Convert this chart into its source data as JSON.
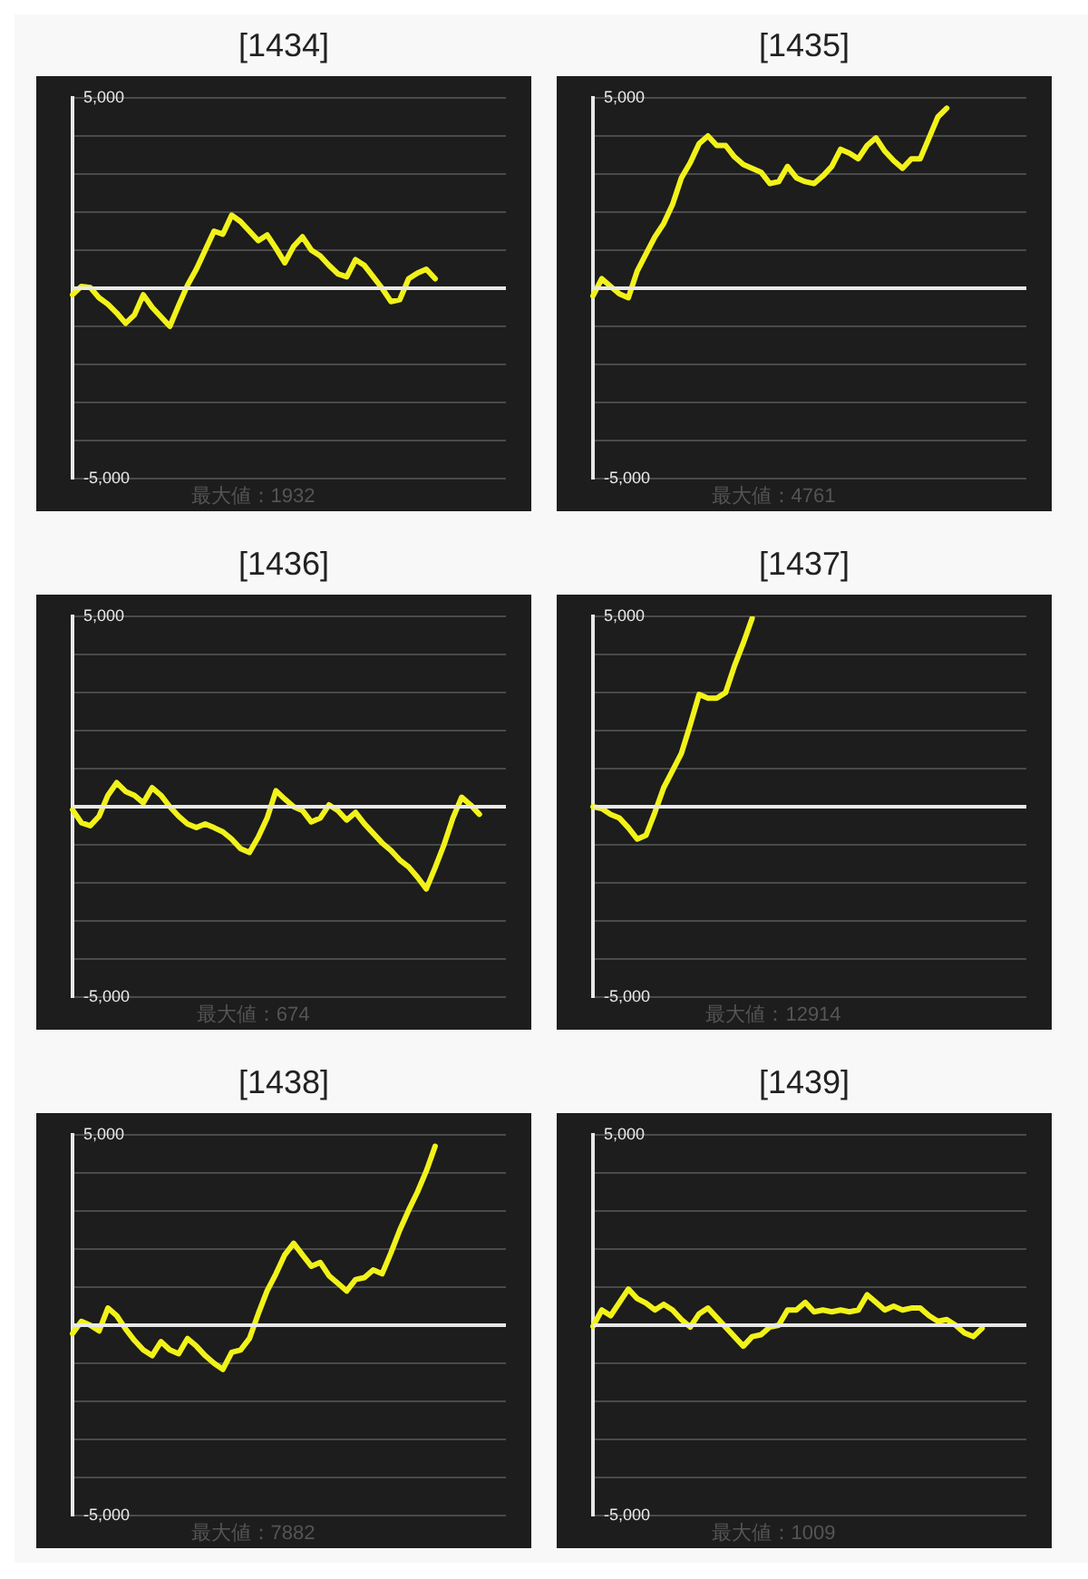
{
  "chart_data": [
    {
      "type": "line",
      "title": "[1434]",
      "categories": [
        null,
        null,
        null,
        null,
        null,
        null,
        null,
        null,
        null,
        null,
        null,
        null,
        null,
        null,
        null,
        null,
        null,
        null,
        null,
        null,
        null,
        null,
        null,
        null,
        null,
        null,
        null,
        null,
        null,
        null,
        null,
        null,
        null,
        null,
        null,
        null,
        null,
        null,
        null,
        null,
        null,
        null,
        null,
        null,
        null,
        null,
        null,
        null,
        null,
        null
      ],
      "series": [
        {
          "color": "#f2f21a",
          "values": [
            -170,
            50,
            20,
            -250,
            -420,
            -650,
            -920,
            -700,
            -170,
            -500,
            -750,
            -1000,
            -450,
            80,
            500,
            1000,
            1500,
            1420,
            1920,
            1750,
            1500,
            1250,
            1400,
            1050,
            670,
            1100,
            1350,
            1000,
            850,
            600,
            380,
            300,
            750,
            600,
            300,
            0,
            -350,
            -300,
            250,
            400,
            500,
            250,
            null,
            null,
            null,
            null,
            null,
            null,
            null,
            null
          ]
        }
      ],
      "ylim": [
        -5000,
        5000
      ],
      "yticks": [
        {
          "value": -5000,
          "label": "-5,000"
        },
        {
          "value": -4000,
          "label": null
        },
        {
          "value": -3000,
          "label": null
        },
        {
          "value": -2000,
          "label": null
        },
        {
          "value": -1000,
          "label": null
        },
        {
          "value": 0,
          "label": null
        },
        {
          "value": 1000,
          "label": null
        },
        {
          "value": 2000,
          "label": null
        },
        {
          "value": 3000,
          "label": null
        },
        {
          "value": 4000,
          "label": null
        },
        {
          "value": 5000,
          "label": "5,000"
        }
      ],
      "grid": "y",
      "tick_labels": "y",
      "marker": "none",
      "ref_lines": [
        {
          "axis": "y",
          "value": 0,
          "color": "#e8e8e8"
        }
      ],
      "annotations": [
        "最大値：1932"
      ]
    },
    {
      "type": "line",
      "title": "[1435]",
      "categories": [
        null,
        null,
        null,
        null,
        null,
        null,
        null,
        null,
        null,
        null,
        null,
        null,
        null,
        null,
        null,
        null,
        null,
        null,
        null,
        null,
        null,
        null,
        null,
        null,
        null,
        null,
        null,
        null,
        null,
        null,
        null,
        null,
        null,
        null,
        null,
        null,
        null,
        null,
        null,
        null,
        null,
        null,
        null,
        null,
        null,
        null,
        null,
        null,
        null,
        null
      ],
      "series": [
        {
          "color": "#f2f21a",
          "values": [
            -200,
            250,
            50,
            -150,
            -250,
            450,
            900,
            1350,
            1700,
            2200,
            2900,
            3300,
            3800,
            4000,
            3750,
            3750,
            3450,
            3250,
            3150,
            3050,
            2750,
            2800,
            3200,
            2900,
            2800,
            2750,
            2950,
            3200,
            3650,
            3550,
            3400,
            3750,
            3950,
            3600,
            3350,
            3150,
            3400,
            3400,
            3950,
            4500,
            4730,
            null,
            null,
            null,
            null,
            null,
            null,
            null,
            null,
            null
          ]
        }
      ],
      "ylim": [
        -5000,
        5000
      ],
      "yticks": [
        {
          "value": -5000,
          "label": "-5,000"
        },
        {
          "value": -4000,
          "label": null
        },
        {
          "value": -3000,
          "label": null
        },
        {
          "value": -2000,
          "label": null
        },
        {
          "value": -1000,
          "label": null
        },
        {
          "value": 0,
          "label": null
        },
        {
          "value": 1000,
          "label": null
        },
        {
          "value": 2000,
          "label": null
        },
        {
          "value": 3000,
          "label": null
        },
        {
          "value": 4000,
          "label": null
        },
        {
          "value": 5000,
          "label": "5,000"
        }
      ],
      "grid": "y",
      "tick_labels": "y",
      "marker": "none",
      "ref_lines": [
        {
          "axis": "y",
          "value": 0,
          "color": "#e8e8e8"
        }
      ],
      "annotations": [
        "最大値：4761"
      ]
    },
    {
      "type": "line",
      "title": "[1436]",
      "categories": [
        null,
        null,
        null,
        null,
        null,
        null,
        null,
        null,
        null,
        null,
        null,
        null,
        null,
        null,
        null,
        null,
        null,
        null,
        null,
        null,
        null,
        null,
        null,
        null,
        null,
        null,
        null,
        null,
        null,
        null,
        null,
        null,
        null,
        null,
        null,
        null,
        null,
        null,
        null,
        null,
        null,
        null,
        null,
        null,
        null,
        null,
        null,
        null,
        null,
        null
      ],
      "series": [
        {
          "color": "#f2f21a",
          "values": [
            -80,
            -420,
            -500,
            -250,
            300,
            630,
            400,
            300,
            100,
            500,
            300,
            0,
            -250,
            -450,
            -550,
            -450,
            -550,
            -660,
            -850,
            -1100,
            -1200,
            -800,
            -300,
            420,
            200,
            0,
            -100,
            -400,
            -300,
            50,
            -100,
            -350,
            -150,
            -450,
            -700,
            -950,
            -1150,
            -1400,
            -1580,
            -1850,
            -2160,
            -1600,
            -1000,
            -300,
            250,
            50,
            -200,
            null,
            null,
            null
          ]
        }
      ],
      "ylim": [
        -5000,
        5000
      ],
      "yticks": [
        {
          "value": -5000,
          "label": "-5,000"
        },
        {
          "value": -4000,
          "label": null
        },
        {
          "value": -3000,
          "label": null
        },
        {
          "value": -2000,
          "label": null
        },
        {
          "value": -1000,
          "label": null
        },
        {
          "value": 0,
          "label": null
        },
        {
          "value": 1000,
          "label": null
        },
        {
          "value": 2000,
          "label": null
        },
        {
          "value": 3000,
          "label": null
        },
        {
          "value": 4000,
          "label": null
        },
        {
          "value": 5000,
          "label": "5,000"
        }
      ],
      "grid": "y",
      "tick_labels": "y",
      "marker": "none",
      "ref_lines": [
        {
          "axis": "y",
          "value": 0,
          "color": "#e8e8e8"
        }
      ],
      "annotations": [
        "最大値：674"
      ]
    },
    {
      "type": "line",
      "title": "[1437]",
      "categories": [
        null,
        null,
        null,
        null,
        null,
        null,
        null,
        null,
        null,
        null,
        null,
        null,
        null,
        null,
        null,
        null,
        null,
        null,
        null,
        null,
        null,
        null,
        null,
        null,
        null,
        null,
        null,
        null,
        null,
        null,
        null,
        null,
        null,
        null,
        null,
        null,
        null,
        null,
        null,
        null,
        null,
        null,
        null,
        null,
        null,
        null,
        null,
        null,
        null,
        null
      ],
      "series": [
        {
          "color": "#f2f21a",
          "values": [
            0,
            -50,
            -200,
            -300,
            -550,
            -850,
            -750,
            -150,
            500,
            950,
            1400,
            2150,
            2950,
            2850,
            2850,
            3000,
            3700,
            4300,
            4950,
            null,
            null,
            null,
            null,
            null,
            null,
            null,
            null,
            null,
            null,
            null,
            null,
            null,
            null,
            null,
            null,
            null,
            null,
            null,
            null,
            null,
            null,
            null,
            null,
            null,
            null,
            null,
            null,
            null,
            null,
            null
          ]
        }
      ],
      "ylim": [
        -5000,
        5000
      ],
      "yticks": [
        {
          "value": -5000,
          "label": "-5,000"
        },
        {
          "value": -4000,
          "label": null
        },
        {
          "value": -3000,
          "label": null
        },
        {
          "value": -2000,
          "label": null
        },
        {
          "value": -1000,
          "label": null
        },
        {
          "value": 0,
          "label": null
        },
        {
          "value": 1000,
          "label": null
        },
        {
          "value": 2000,
          "label": null
        },
        {
          "value": 3000,
          "label": null
        },
        {
          "value": 4000,
          "label": null
        },
        {
          "value": 5000,
          "label": "5,000"
        }
      ],
      "grid": "y",
      "tick_labels": "y",
      "marker": "none",
      "ref_lines": [
        {
          "axis": "y",
          "value": 0,
          "color": "#e8e8e8"
        }
      ],
      "annotations": [
        "最大値：12914"
      ]
    },
    {
      "type": "line",
      "title": "[1438]",
      "categories": [
        null,
        null,
        null,
        null,
        null,
        null,
        null,
        null,
        null,
        null,
        null,
        null,
        null,
        null,
        null,
        null,
        null,
        null,
        null,
        null,
        null,
        null,
        null,
        null,
        null,
        null,
        null,
        null,
        null,
        null,
        null,
        null,
        null,
        null,
        null,
        null,
        null,
        null,
        null,
        null,
        null,
        null,
        null,
        null,
        null,
        null,
        null,
        null,
        null,
        null
      ],
      "series": [
        {
          "color": "#f2f21a",
          "values": [
            -220,
            100,
            0,
            -150,
            450,
            250,
            -100,
            -400,
            -650,
            -800,
            -430,
            -650,
            -750,
            -350,
            -550,
            -800,
            -1000,
            -1160,
            -710,
            -650,
            -350,
            300,
            900,
            1350,
            1850,
            2150,
            1850,
            1550,
            1650,
            1300,
            1100,
            900,
            1200,
            1250,
            1450,
            1350,
            1900,
            2500,
            3020,
            3500,
            4050,
            4700,
            null,
            null,
            null,
            null,
            null,
            null,
            null,
            null
          ]
        }
      ],
      "ylim": [
        -5000,
        5000
      ],
      "yticks": [
        {
          "value": -5000,
          "label": "-5,000"
        },
        {
          "value": -4000,
          "label": null
        },
        {
          "value": -3000,
          "label": null
        },
        {
          "value": -2000,
          "label": null
        },
        {
          "value": -1000,
          "label": null
        },
        {
          "value": 0,
          "label": null
        },
        {
          "value": 1000,
          "label": null
        },
        {
          "value": 2000,
          "label": null
        },
        {
          "value": 3000,
          "label": null
        },
        {
          "value": 4000,
          "label": null
        },
        {
          "value": 5000,
          "label": "5,000"
        }
      ],
      "grid": "y",
      "tick_labels": "y",
      "marker": "none",
      "ref_lines": [
        {
          "axis": "y",
          "value": 0,
          "color": "#e8e8e8"
        }
      ],
      "annotations": [
        "最大値：7882"
      ]
    },
    {
      "type": "line",
      "title": "[1439]",
      "categories": [
        null,
        null,
        null,
        null,
        null,
        null,
        null,
        null,
        null,
        null,
        null,
        null,
        null,
        null,
        null,
        null,
        null,
        null,
        null,
        null,
        null,
        null,
        null,
        null,
        null,
        null,
        null,
        null,
        null,
        null,
        null,
        null,
        null,
        null,
        null,
        null,
        null,
        null,
        null,
        null,
        null,
        null,
        null,
        null,
        null,
        null,
        null,
        null,
        null,
        null
      ],
      "series": [
        {
          "color": "#f2f21a",
          "values": [
            -30,
            400,
            250,
            600,
            950,
            700,
            580,
            400,
            550,
            400,
            150,
            -50,
            300,
            450,
            200,
            -50,
            -300,
            -550,
            -300,
            -250,
            -50,
            0,
            400,
            400,
            600,
            350,
            400,
            350,
            400,
            350,
            400,
            800,
            600,
            400,
            500,
            400,
            450,
            450,
            250,
            100,
            150,
            0,
            -200,
            -300,
            -80,
            null,
            null,
            null,
            null,
            null
          ]
        }
      ],
      "ylim": [
        -5000,
        5000
      ],
      "yticks": [
        {
          "value": -5000,
          "label": "-5,000"
        },
        {
          "value": -4000,
          "label": null
        },
        {
          "value": -3000,
          "label": null
        },
        {
          "value": -2000,
          "label": null
        },
        {
          "value": -1000,
          "label": null
        },
        {
          "value": 0,
          "label": null
        },
        {
          "value": 1000,
          "label": null
        },
        {
          "value": 2000,
          "label": null
        },
        {
          "value": 3000,
          "label": null
        },
        {
          "value": 4000,
          "label": null
        },
        {
          "value": 5000,
          "label": "5,000"
        }
      ],
      "grid": "y",
      "tick_labels": "y",
      "marker": "none",
      "ref_lines": [
        {
          "axis": "y",
          "value": 0,
          "color": "#e8e8e8"
        }
      ],
      "annotations": [
        "最大値：1009"
      ]
    }
  ]
}
